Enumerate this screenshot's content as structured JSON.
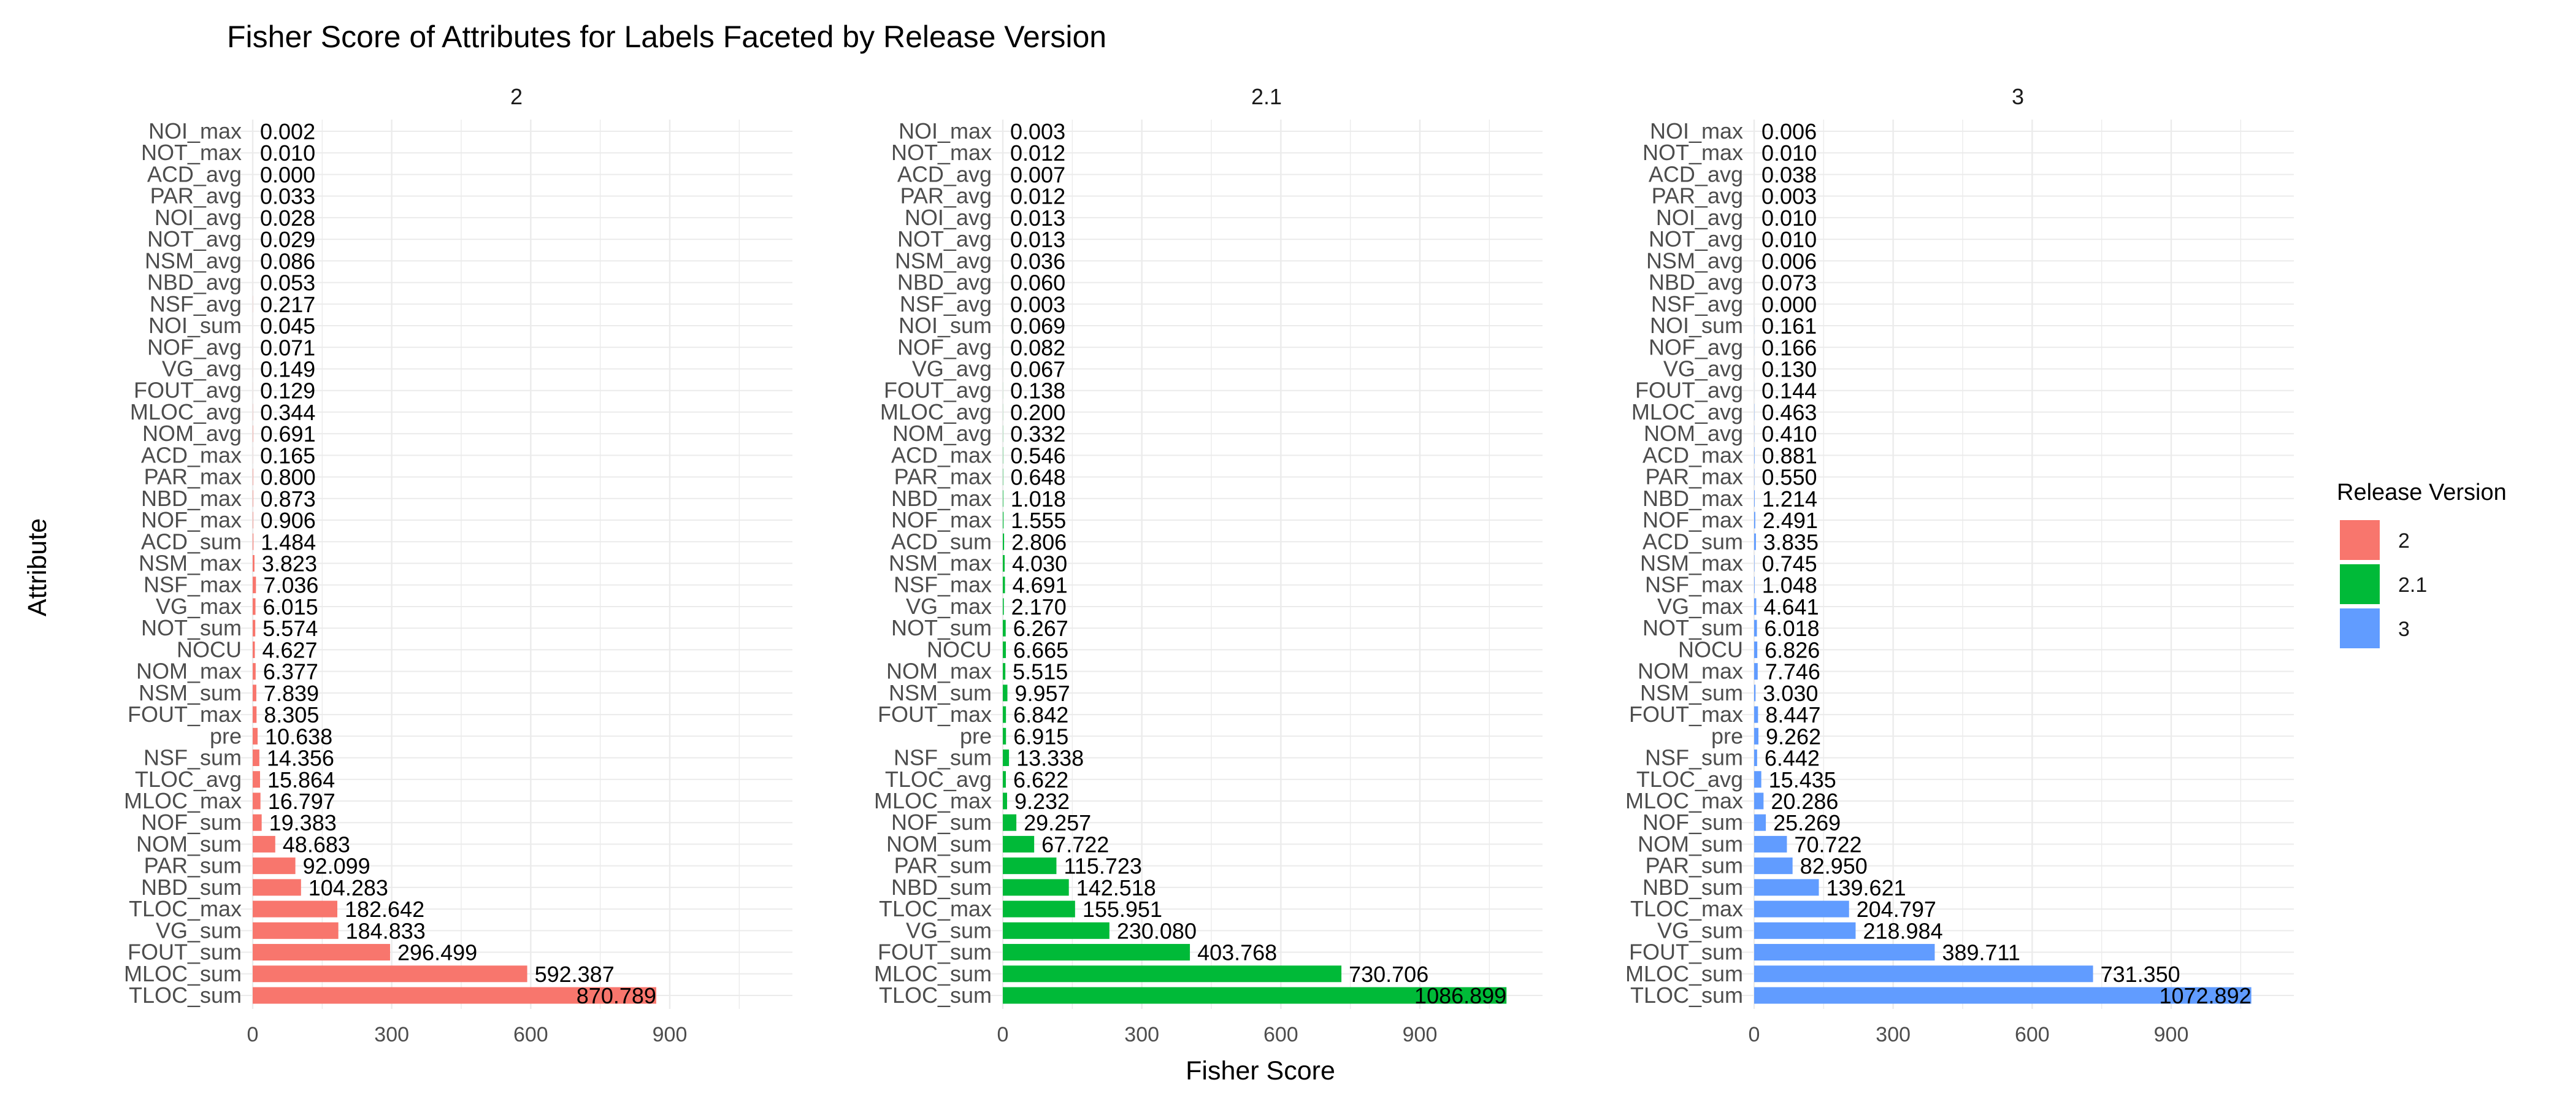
{
  "chart_data": {
    "type": "bar",
    "orientation": "horizontal",
    "title": "Fisher Score of Attributes for Labels Faceted by Release Version",
    "xlabel": "Fisher Score",
    "ylabel": "Attribute",
    "xticks": [
      0,
      300,
      600,
      900
    ],
    "xlim": [
      0,
      1090
    ],
    "legend": {
      "title": "Release Version",
      "position": "right",
      "entries": [
        {
          "label": "2",
          "color": "#F8766D"
        },
        {
          "label": "2.1",
          "color": "#00BA38"
        },
        {
          "label": "3",
          "color": "#619CFF"
        }
      ]
    },
    "categories": [
      "NOI_max",
      "NOT_max",
      "ACD_avg",
      "PAR_avg",
      "NOI_avg",
      "NOT_avg",
      "NSM_avg",
      "NBD_avg",
      "NSF_avg",
      "NOI_sum",
      "NOF_avg",
      "VG_avg",
      "FOUT_avg",
      "MLOC_avg",
      "NOM_avg",
      "ACD_max",
      "PAR_max",
      "NBD_max",
      "NOF_max",
      "ACD_sum",
      "NSM_max",
      "NSF_max",
      "VG_max",
      "NOT_sum",
      "NOCU",
      "NOM_max",
      "NSM_sum",
      "FOUT_max",
      "pre",
      "NSF_sum",
      "TLOC_avg",
      "MLOC_max",
      "NOF_sum",
      "NOM_sum",
      "PAR_sum",
      "NBD_sum",
      "TLOC_max",
      "VG_sum",
      "FOUT_sum",
      "MLOC_sum",
      "TLOC_sum"
    ],
    "series": [
      {
        "name": "2",
        "color": "#F8766D",
        "values": [
          0.002,
          0.01,
          0.0,
          0.033,
          0.028,
          0.029,
          0.086,
          0.053,
          0.217,
          0.045,
          0.071,
          0.149,
          0.129,
          0.344,
          0.691,
          0.165,
          0.8,
          0.873,
          0.906,
          1.484,
          3.823,
          7.036,
          6.015,
          5.574,
          4.627,
          6.377,
          7.839,
          8.305,
          10.638,
          14.356,
          15.864,
          16.797,
          19.383,
          48.683,
          92.099,
          104.283,
          182.642,
          184.833,
          296.499,
          592.387,
          870.789
        ],
        "labels": [
          "0.002",
          "0.010",
          "0.000",
          "0.033",
          "0.028",
          "0.029",
          "0.086",
          "0.053",
          "0.217",
          "0.045",
          "0.071",
          "0.149",
          "0.129",
          "0.344",
          "0.691",
          "0.165",
          "0.800",
          "0.873",
          "0.906",
          "1.484",
          "3.823",
          "7.036",
          "6.015",
          "5.574",
          "4.627",
          "6.377",
          "7.839",
          "8.305",
          "10.638",
          "14.356",
          "15.864",
          "16.797",
          "19.383",
          "48.683",
          "92.099",
          "104.283",
          "182.642",
          "184.833",
          "296.499",
          "592.387",
          "870.789"
        ]
      },
      {
        "name": "2.1",
        "color": "#00BA38",
        "values": [
          0.003,
          0.012,
          0.007,
          0.012,
          0.013,
          0.013,
          0.036,
          0.06,
          0.003,
          0.069,
          0.082,
          0.067,
          0.138,
          0.2,
          0.332,
          0.546,
          0.648,
          1.018,
          1.555,
          2.806,
          4.03,
          4.691,
          2.17,
          6.267,
          6.665,
          5.515,
          9.957,
          6.842,
          6.915,
          13.338,
          6.622,
          9.232,
          29.257,
          67.722,
          115.723,
          142.518,
          155.951,
          230.08,
          403.768,
          730.706,
          1086.899
        ],
        "labels": [
          "0.003",
          "0.012",
          "0.007",
          "0.012",
          "0.013",
          "0.013",
          "0.036",
          "0.060",
          "0.003",
          "0.069",
          "0.082",
          "0.067",
          "0.138",
          "0.200",
          "0.332",
          "0.546",
          "0.648",
          "1.018",
          "1.555",
          "2.806",
          "4.030",
          "4.691",
          "2.170",
          "6.267",
          "6.665",
          "5.515",
          "9.957",
          "6.842",
          "6.915",
          "13.338",
          "6.622",
          "9.232",
          "29.257",
          "67.722",
          "115.723",
          "142.518",
          "155.951",
          "230.080",
          "403.768",
          "730.706",
          "1086.899"
        ]
      },
      {
        "name": "3",
        "color": "#619CFF",
        "values": [
          0.006,
          0.01,
          0.038,
          0.003,
          0.01,
          0.01,
          0.006,
          0.073,
          0.0,
          0.161,
          0.166,
          0.13,
          0.144,
          0.463,
          0.41,
          0.881,
          0.55,
          1.214,
          2.491,
          3.835,
          0.745,
          1.048,
          4.641,
          6.018,
          6.826,
          7.746,
          3.03,
          8.447,
          9.262,
          6.442,
          15.435,
          20.286,
          25.269,
          70.722,
          82.95,
          139.621,
          204.797,
          218.984,
          389.711,
          731.35,
          1072.892
        ],
        "labels": [
          "0.006",
          "0.010",
          "0.038",
          "0.003",
          "0.010",
          "0.010",
          "0.006",
          "0.073",
          "0.000",
          "0.161",
          "0.166",
          "0.130",
          "0.144",
          "0.463",
          "0.410",
          "0.881",
          "0.550",
          "1.214",
          "2.491",
          "3.835",
          "0.745",
          "1.048",
          "4.641",
          "6.018",
          "6.826",
          "7.746",
          "3.030",
          "8.447",
          "9.262",
          "6.442",
          "15.435",
          "20.286",
          "25.269",
          "70.722",
          "82.950",
          "139.621",
          "204.797",
          "218.984",
          "389.711",
          "731.350",
          "1072.892"
        ]
      }
    ]
  }
}
